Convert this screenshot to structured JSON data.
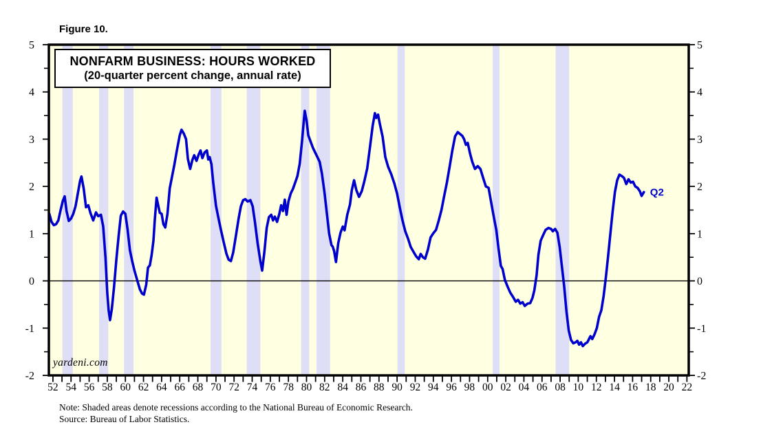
{
  "figure_label": "Figure 10.",
  "title_box": {
    "line1": "NONFARM BUSINESS: HOURS WORKED",
    "line2": "(20-quarter percent change, annual rate)"
  },
  "watermark": "yardeni.com",
  "notes": {
    "line1": "Note: Shaded areas denote recessions according to the National Bureau of Economic Research.",
    "line2": "Source: Bureau of Labor Statistics."
  },
  "chart_data": {
    "type": "line",
    "title": "NONFARM BUSINESS: HOURS WORKED",
    "subtitle": "(20-quarter percent change, annual rate)",
    "xlabel": "",
    "ylabel": "",
    "xlim": [
      1951.55,
      2022.2
    ],
    "ylim": [
      -2,
      5
    ],
    "grid": false,
    "zero_line": true,
    "dual_y_axis_labels": true,
    "y_major_ticks": [
      -2,
      -1,
      0,
      1,
      2,
      3,
      4,
      5
    ],
    "y_minor_ticks": [
      -1.5,
      -0.5,
      0.5,
      1.5,
      2.5,
      3.5,
      4.5
    ],
    "x_minor_tick_step_years": 1,
    "x_label_years": [
      1952,
      1954,
      1956,
      1958,
      1960,
      1962,
      1964,
      1966,
      1968,
      1970,
      1972,
      1974,
      1976,
      1978,
      1980,
      1982,
      1984,
      1986,
      1988,
      1990,
      1992,
      1994,
      1996,
      1998,
      2000,
      2002,
      2004,
      2006,
      2008,
      2010,
      2012,
      2014,
      2016,
      2018,
      2020,
      2022
    ],
    "x_tick_labels": [
      "52",
      "54",
      "56",
      "58",
      "60",
      "62",
      "64",
      "66",
      "68",
      "70",
      "72",
      "74",
      "76",
      "78",
      "80",
      "82",
      "84",
      "86",
      "88",
      "90",
      "92",
      "94",
      "96",
      "98",
      "00",
      "02",
      "04",
      "06",
      "08",
      "10",
      "12",
      "14",
      "16",
      "18",
      "20",
      "22"
    ],
    "end_label": "Q2",
    "recessions": [
      [
        1953.05,
        1954.2
      ],
      [
        1957.1,
        1958.1
      ],
      [
        1959.85,
        1960.9
      ],
      [
        1969.4,
        1970.6
      ],
      [
        1973.4,
        1974.9
      ],
      [
        1979.4,
        1980.3
      ],
      [
        1981.1,
        1982.6
      ],
      [
        1990.05,
        1990.85
      ],
      [
        2000.55,
        2001.3
      ],
      [
        2007.5,
        2009.0
      ]
    ],
    "colors": {
      "plot_background": "#ffffe2",
      "recession_band": "#dedef7",
      "axis": "#000000",
      "line": "#0000cc",
      "end_label": "#0000cc"
    },
    "series": [
      {
        "name": "Hours Worked (20-quarter percent change, annual rate)",
        "color": "#0000cc",
        "x": [
          1951.6,
          1951.85,
          1952.1,
          1952.35,
          1952.6,
          1952.85,
          1953.1,
          1953.3,
          1953.5,
          1953.75,
          1954.0,
          1954.25,
          1954.5,
          1954.75,
          1955.0,
          1955.15,
          1955.4,
          1955.65,
          1955.9,
          1956.15,
          1956.45,
          1956.75,
          1957.0,
          1957.3,
          1957.55,
          1957.8,
          1958.0,
          1958.15,
          1958.3,
          1958.5,
          1958.75,
          1959.0,
          1959.25,
          1959.5,
          1959.75,
          1960.0,
          1960.25,
          1960.5,
          1960.75,
          1961.0,
          1961.3,
          1961.6,
          1961.85,
          1962.05,
          1962.3,
          1962.5,
          1962.7,
          1962.9,
          1963.1,
          1963.25,
          1963.45,
          1963.6,
          1963.8,
          1964.0,
          1964.2,
          1964.4,
          1964.65,
          1964.9,
          1965.1,
          1965.4,
          1965.7,
          1966.0,
          1966.2,
          1966.45,
          1966.7,
          1966.9,
          1967.15,
          1967.4,
          1967.6,
          1967.85,
          1968.1,
          1968.3,
          1968.5,
          1968.75,
          1969.0,
          1969.15,
          1969.3,
          1969.5,
          1969.7,
          1970.0,
          1970.25,
          1970.55,
          1970.85,
          1971.15,
          1971.4,
          1971.65,
          1971.9,
          1972.2,
          1972.5,
          1972.75,
          1973.0,
          1973.25,
          1973.5,
          1973.8,
          1974.05,
          1974.3,
          1974.6,
          1974.9,
          1975.1,
          1975.35,
          1975.6,
          1975.85,
          1976.1,
          1976.3,
          1976.5,
          1976.75,
          1977.0,
          1977.2,
          1977.4,
          1977.6,
          1977.8,
          1978.0,
          1978.25,
          1978.5,
          1978.75,
          1979.0,
          1979.25,
          1979.5,
          1979.7,
          1979.8,
          1980.0,
          1980.2,
          1980.45,
          1980.7,
          1980.95,
          1981.2,
          1981.45,
          1981.7,
          1982.0,
          1982.25,
          1982.5,
          1982.75,
          1982.9,
          1983.05,
          1983.25,
          1983.5,
          1983.75,
          1984.0,
          1984.2,
          1984.5,
          1984.8,
          1985.0,
          1985.25,
          1985.5,
          1985.8,
          1986.1,
          1986.4,
          1986.7,
          1987.0,
          1987.3,
          1987.55,
          1987.7,
          1987.9,
          1988.1,
          1988.4,
          1988.7,
          1989.0,
          1989.35,
          1989.7,
          1990.0,
          1990.3,
          1990.6,
          1990.9,
          1991.2,
          1991.5,
          1991.8,
          1992.1,
          1992.4,
          1992.6,
          1992.85,
          1993.1,
          1993.4,
          1993.7,
          1994.0,
          1994.3,
          1994.6,
          1994.9,
          1995.2,
          1995.5,
          1995.8,
          1996.1,
          1996.4,
          1996.7,
          1996.95,
          1997.2,
          1997.4,
          1997.6,
          1997.8,
          1998.05,
          1998.3,
          1998.6,
          1998.9,
          1999.2,
          1999.5,
          1999.8,
          2000.1,
          2000.4,
          2000.7,
          2000.95,
          2001.2,
          2001.45,
          2001.65,
          2001.9,
          2002.2,
          2002.5,
          2002.8,
          2003.1,
          2003.35,
          2003.6,
          2003.85,
          2004.1,
          2004.4,
          2004.7,
          2004.95,
          2005.15,
          2005.4,
          2005.6,
          2005.85,
          2006.1,
          2006.4,
          2006.7,
          2007.0,
          2007.2,
          2007.45,
          2007.7,
          2007.95,
          2008.2,
          2008.45,
          2008.7,
          2008.95,
          2009.2,
          2009.45,
          2009.7,
          2009.9,
          2010.1,
          2010.3,
          2010.5,
          2010.75,
          2011.0,
          2011.35,
          2011.55,
          2011.8,
          2012.05,
          2012.3,
          2012.55,
          2012.8,
          2013.05,
          2013.3,
          2013.55,
          2013.8,
          2014.05,
          2014.3,
          2014.55,
          2014.8,
          2015.05,
          2015.3,
          2015.55,
          2015.8,
          2016.05,
          2016.3,
          2016.55,
          2016.8,
          2017.0,
          2017.25
        ],
        "y": [
          1.42,
          1.25,
          1.18,
          1.2,
          1.28,
          1.5,
          1.7,
          1.79,
          1.48,
          1.27,
          1.32,
          1.42,
          1.58,
          1.85,
          2.12,
          2.21,
          1.95,
          1.56,
          1.6,
          1.43,
          1.28,
          1.45,
          1.37,
          1.4,
          1.15,
          0.5,
          -0.25,
          -0.62,
          -0.83,
          -0.6,
          -0.12,
          0.45,
          0.95,
          1.38,
          1.47,
          1.42,
          1.08,
          0.65,
          0.42,
          0.22,
          0.02,
          -0.18,
          -0.27,
          -0.29,
          -0.08,
          0.28,
          0.33,
          0.55,
          0.85,
          1.3,
          1.76,
          1.62,
          1.44,
          1.42,
          1.2,
          1.13,
          1.42,
          1.96,
          2.16,
          2.45,
          2.78,
          3.08,
          3.2,
          3.12,
          3.0,
          2.58,
          2.37,
          2.56,
          2.66,
          2.54,
          2.68,
          2.76,
          2.6,
          2.72,
          2.76,
          2.57,
          2.62,
          2.47,
          2.08,
          1.59,
          1.35,
          1.08,
          0.82,
          0.58,
          0.45,
          0.42,
          0.6,
          0.95,
          1.32,
          1.58,
          1.71,
          1.73,
          1.68,
          1.71,
          1.58,
          1.25,
          0.8,
          0.42,
          0.22,
          0.62,
          1.12,
          1.35,
          1.4,
          1.28,
          1.36,
          1.25,
          1.42,
          1.6,
          1.48,
          1.72,
          1.4,
          1.68,
          1.85,
          1.95,
          2.08,
          2.22,
          2.48,
          2.95,
          3.4,
          3.6,
          3.4,
          3.08,
          2.95,
          2.82,
          2.72,
          2.62,
          2.52,
          2.27,
          1.85,
          1.42,
          1.0,
          0.76,
          0.72,
          0.63,
          0.4,
          0.8,
          1.02,
          1.15,
          1.07,
          1.4,
          1.62,
          1.92,
          2.13,
          1.92,
          1.78,
          1.9,
          2.12,
          2.38,
          2.82,
          3.28,
          3.55,
          3.45,
          3.52,
          3.32,
          3.05,
          2.62,
          2.42,
          2.26,
          2.06,
          1.85,
          1.55,
          1.28,
          1.05,
          0.9,
          0.72,
          0.62,
          0.52,
          0.46,
          0.57,
          0.5,
          0.47,
          0.66,
          0.92,
          1.01,
          1.08,
          1.28,
          1.5,
          1.8,
          2.08,
          2.42,
          2.76,
          3.06,
          3.15,
          3.11,
          3.07,
          3.0,
          2.88,
          2.92,
          2.7,
          2.52,
          2.37,
          2.43,
          2.37,
          2.18,
          2.0,
          1.97,
          1.65,
          1.33,
          1.08,
          0.68,
          0.32,
          0.25,
          0.02,
          -0.12,
          -0.25,
          -0.34,
          -0.44,
          -0.4,
          -0.48,
          -0.45,
          -0.53,
          -0.48,
          -0.47,
          -0.36,
          -0.2,
          0.12,
          0.55,
          0.85,
          0.96,
          1.08,
          1.12,
          1.1,
          1.05,
          1.1,
          1.02,
          0.72,
          0.3,
          -0.12,
          -0.65,
          -1.05,
          -1.25,
          -1.32,
          -1.3,
          -1.27,
          -1.35,
          -1.3,
          -1.38,
          -1.33,
          -1.3,
          -1.17,
          -1.23,
          -1.13,
          -1.0,
          -0.76,
          -0.62,
          -0.32,
          0.08,
          0.52,
          1.0,
          1.47,
          1.88,
          2.13,
          2.25,
          2.22,
          2.18,
          2.05,
          2.15,
          2.08,
          2.1,
          2.0,
          1.97,
          1.9,
          1.8,
          1.88
        ]
      }
    ]
  }
}
